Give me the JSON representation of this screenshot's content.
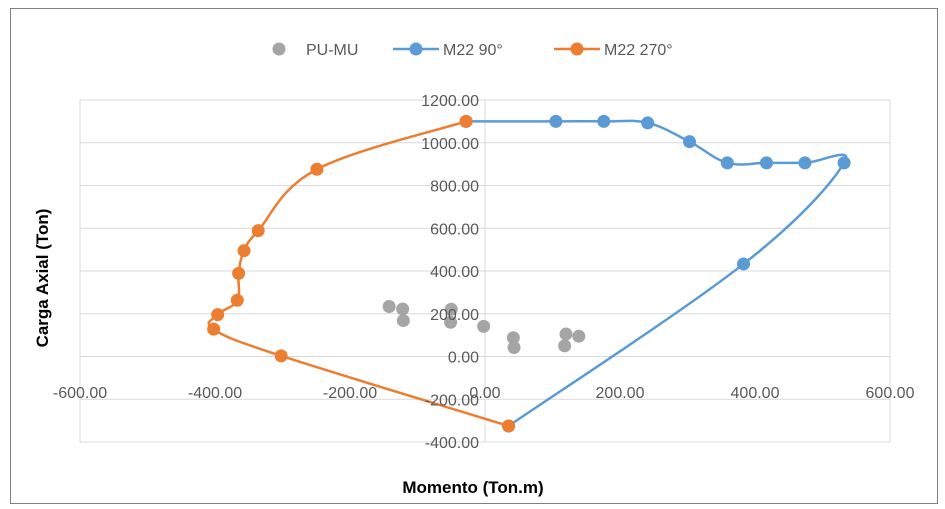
{
  "chart_data": {
    "type": "scatter",
    "title": "",
    "xlabel": "Momento (Ton.m)",
    "ylabel": "Carga Axial (Ton)",
    "xlim": [
      -600,
      600
    ],
    "ylim": [
      -400,
      1200
    ],
    "x_ticks": [
      "-600.00",
      "-400.00",
      "-200.00",
      "0.00",
      "200.00",
      "400.00",
      "600.00"
    ],
    "y_ticks": [
      "-400.00",
      "-200.00",
      "0.00",
      "200.00",
      "400.00",
      "600.00",
      "800.00",
      "1000.00",
      "1200.00"
    ],
    "grid": true,
    "legend_position": "top",
    "series": [
      {
        "name": "PU-MU",
        "style": "markers",
        "color": "#a5a5a5",
        "points": [
          [
            -142,
            234
          ],
          [
            -122,
            222
          ],
          [
            -121,
            168
          ],
          [
            -50,
            221
          ],
          [
            -51,
            160
          ],
          [
            -2,
            141
          ],
          [
            42,
            88
          ],
          [
            43,
            42
          ],
          [
            120,
            105
          ],
          [
            118,
            50
          ],
          [
            139,
            95
          ]
        ]
      },
      {
        "name": "M22 90°",
        "style": "line-markers",
        "color": "#5b9bd5",
        "points": [
          [
            -28,
            1100
          ],
          [
            105,
            1100
          ],
          [
            176,
            1100
          ],
          [
            241,
            1093
          ],
          [
            303,
            1005
          ],
          [
            359,
            906
          ],
          [
            417,
            906
          ],
          [
            474,
            906
          ],
          [
            532,
            906
          ],
          [
            383,
            433
          ],
          [
            35,
            -325
          ]
        ]
      },
      {
        "name": "M22 270°",
        "style": "line-markers",
        "color": "#ed7d31",
        "points": [
          [
            -28,
            1100
          ],
          [
            -249,
            876
          ],
          [
            -336,
            589
          ],
          [
            -357,
            495
          ],
          [
            -365,
            389
          ],
          [
            -367,
            263
          ],
          [
            -396,
            196
          ],
          [
            -402,
            128
          ],
          [
            -302,
            3
          ],
          [
            35,
            -325
          ]
        ]
      }
    ]
  }
}
